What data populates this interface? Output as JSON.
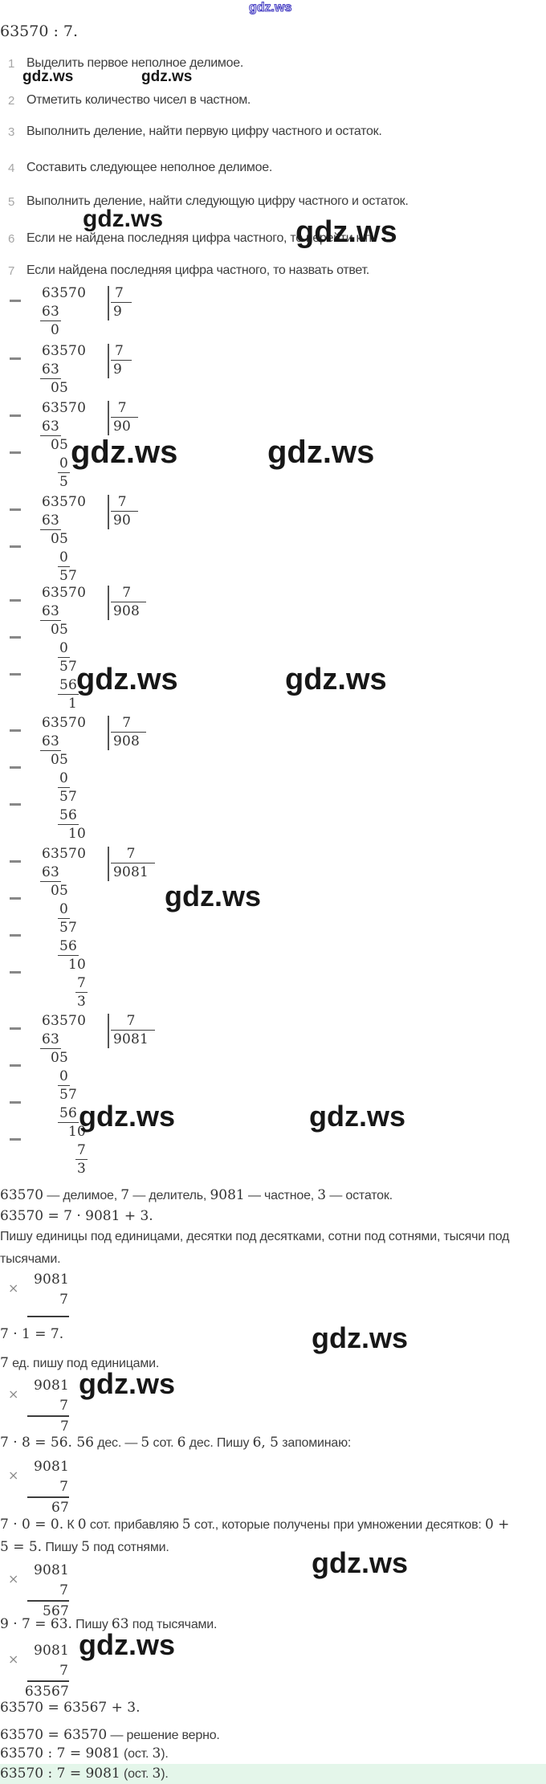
{
  "title": "63570 : 7.",
  "watermark_text": "gdz.ws",
  "multiplication_sign": "×",
  "colors": {
    "answer_highlight": "#e4f6ea",
    "watermark_black": "#171717",
    "watermark_blue_outline": "#4d45c4",
    "text": "#3e3e3e"
  },
  "steps": [
    {
      "num": "1",
      "text": "Выделить первое неполное делимое."
    },
    {
      "num": "2",
      "text": "Отметить количество чисел в частном."
    },
    {
      "num": "3",
      "text": "Выполнить деление, найти первую цифру частного и остаток."
    },
    {
      "num": "4",
      "text": "Составить следующее неполное делимое."
    },
    {
      "num": "5",
      "text": "Выполнить деление, найти следующую цифру частного и остаток."
    },
    {
      "num": "6",
      "text": "Если не найдена последняя цифра частного, то перейти к п."
    },
    {
      "num": "7",
      "text": "Если найдена последняя цифра частного, то назвать ответ."
    }
  ],
  "division": {
    "dividend": "63570",
    "divisor": "7",
    "blocks": [
      {
        "quotient": "9",
        "rows": [
          {
            "v": "63570",
            "c": 0
          },
          {
            "v": "63",
            "c": 0,
            "m": 1,
            "u": 1
          },
          {
            "v": "0",
            "c": 1
          }
        ]
      },
      {
        "quotient": "9",
        "rows": [
          {
            "v": "63570",
            "c": 0
          },
          {
            "v": "63",
            "c": 0,
            "m": 1,
            "u": 1
          },
          {
            "v": "05",
            "c": 1
          }
        ]
      },
      {
        "quotient": "90",
        "rows": [
          {
            "v": "63570",
            "c": 0
          },
          {
            "v": "63",
            "c": 0,
            "m": 1,
            "u": 1
          },
          {
            "v": "05",
            "c": 1
          },
          {
            "v": "0",
            "c": 2,
            "m": 1,
            "u": 1
          },
          {
            "v": "5",
            "c": 2
          }
        ]
      },
      {
        "quotient": "90",
        "rows": [
          {
            "v": "63570",
            "c": 0
          },
          {
            "v": "63",
            "c": 0,
            "m": 1,
            "u": 1
          },
          {
            "v": "05",
            "c": 1
          },
          {
            "v": "0",
            "c": 2,
            "m": 1,
            "u": 1
          },
          {
            "v": "57",
            "c": 2
          }
        ]
      },
      {
        "quotient": "908",
        "rows": [
          {
            "v": "63570",
            "c": 0
          },
          {
            "v": "63",
            "c": 0,
            "m": 1,
            "u": 1
          },
          {
            "v": "05",
            "c": 1
          },
          {
            "v": "0",
            "c": 2,
            "m": 1,
            "u": 1
          },
          {
            "v": "57",
            "c": 2
          },
          {
            "v": "56",
            "c": 2,
            "m": 1,
            "u": 1
          },
          {
            "v": "1",
            "c": 3
          }
        ]
      },
      {
        "quotient": "908",
        "rows": [
          {
            "v": "63570",
            "c": 0
          },
          {
            "v": "63",
            "c": 0,
            "m": 1,
            "u": 1
          },
          {
            "v": "05",
            "c": 1
          },
          {
            "v": "0",
            "c": 2,
            "m": 1,
            "u": 1
          },
          {
            "v": "57",
            "c": 2
          },
          {
            "v": "56",
            "c": 2,
            "m": 1,
            "u": 1
          },
          {
            "v": "10",
            "c": 3
          }
        ]
      },
      {
        "quotient": "9081",
        "rows": [
          {
            "v": "63570",
            "c": 0
          },
          {
            "v": "63",
            "c": 0,
            "m": 1,
            "u": 1
          },
          {
            "v": "05",
            "c": 1
          },
          {
            "v": "0",
            "c": 2,
            "m": 1,
            "u": 1
          },
          {
            "v": "57",
            "c": 2
          },
          {
            "v": "56",
            "c": 2,
            "m": 1,
            "u": 1
          },
          {
            "v": "10",
            "c": 3
          },
          {
            "v": "7",
            "c": 4,
            "m": 1,
            "u": 1
          },
          {
            "v": "3",
            "c": 4
          }
        ]
      },
      {
        "quotient": "9081",
        "rows": [
          {
            "v": "63570",
            "c": 0
          },
          {
            "v": "63",
            "c": 0,
            "m": 1,
            "u": 1
          },
          {
            "v": "05",
            "c": 1
          },
          {
            "v": "0",
            "c": 2,
            "m": 1,
            "u": 1
          },
          {
            "v": "57",
            "c": 2
          },
          {
            "v": "56",
            "c": 2,
            "m": 1,
            "u": 1
          },
          {
            "v": "10",
            "c": 3
          },
          {
            "v": "7",
            "c": 4,
            "m": 1,
            "u": 1
          },
          {
            "v": "3",
            "c": 4
          }
        ]
      }
    ]
  },
  "multiplications": [
    {
      "a": "9081",
      "b": "7",
      "p": ""
    },
    {
      "a": "9081",
      "b": "7",
      "p": "7"
    },
    {
      "a": "9081",
      "b": "7",
      "p": "67"
    },
    {
      "a": "9081",
      "b": "7",
      "p": "567"
    },
    {
      "a": "9081",
      "b": "7",
      "p": "63567"
    }
  ],
  "conclusion_lines": [
    {
      "segs": [
        [
          "m",
          "63570"
        ],
        [
          "t",
          " — делимое, "
        ],
        [
          "m",
          "7"
        ],
        [
          "t",
          " — делитель, "
        ],
        [
          "m",
          "9081"
        ],
        [
          "t",
          " — частное, "
        ],
        [
          "m",
          "3"
        ],
        [
          "t",
          " — остаток."
        ]
      ]
    },
    {
      "segs": [
        [
          "m",
          "63570 = 7 · 9081 + 3."
        ]
      ]
    },
    {
      "segs": [
        [
          "t",
          "Пишу единицы под единицами, десятки под десятками, сотни под сотнями, тысячи под"
        ]
      ]
    },
    {
      "segs": [
        [
          "t",
          "тысячами."
        ]
      ]
    },
    {
      "segs": [
        [
          "m",
          "7 · 1 = 7."
        ]
      ]
    },
    {
      "segs": [
        [
          "m",
          "7"
        ],
        [
          "t",
          " ед. пишу под единицами."
        ]
      ]
    },
    {
      "segs": [
        [
          "m",
          "7 · 8 = 56. 56"
        ],
        [
          "t",
          " дес. — "
        ],
        [
          "m",
          "5"
        ],
        [
          "t",
          " сот. "
        ],
        [
          "m",
          "6"
        ],
        [
          "t",
          " дес. Пишу "
        ],
        [
          "m",
          "6, 5"
        ],
        [
          "t",
          " запоминаю:"
        ]
      ]
    },
    {
      "segs": [
        [
          "m",
          "7 · 0 = 0."
        ],
        [
          "t",
          " К "
        ],
        [
          "m",
          "0"
        ],
        [
          "t",
          " сот. прибавляю "
        ],
        [
          "m",
          "5"
        ],
        [
          "t",
          " сот., которые получены при умножении десятков: "
        ],
        [
          "m",
          "0 +"
        ]
      ]
    },
    {
      "segs": [
        [
          "m",
          "5 = 5."
        ],
        [
          "t",
          " Пишу "
        ],
        [
          "m",
          "5"
        ],
        [
          "t",
          " под сотнями."
        ]
      ]
    },
    {
      "segs": [
        [
          "m",
          "9 · 7 = 63."
        ],
        [
          "t",
          " Пишу "
        ],
        [
          "m",
          "63"
        ],
        [
          "t",
          " под тысячами."
        ]
      ]
    },
    {
      "segs": [
        [
          "m",
          "63570 = 63567 + 3."
        ]
      ]
    },
    {
      "segs": [
        [
          "m",
          "63570 = 63570"
        ],
        [
          "t",
          " — решение верно."
        ]
      ]
    },
    {
      "segs": [
        [
          "m",
          "63570 : 7 = 9081"
        ],
        [
          "t",
          " (ост. "
        ],
        [
          "m",
          "3"
        ],
        [
          "t",
          ")."
        ]
      ]
    },
    {
      "segs": [
        [
          "m",
          "63570 : 7 = 9081"
        ],
        [
          "t",
          " (ост. "
        ],
        [
          "m",
          "3"
        ],
        [
          "t",
          ")."
        ]
      ],
      "highlight": true
    }
  ]
}
